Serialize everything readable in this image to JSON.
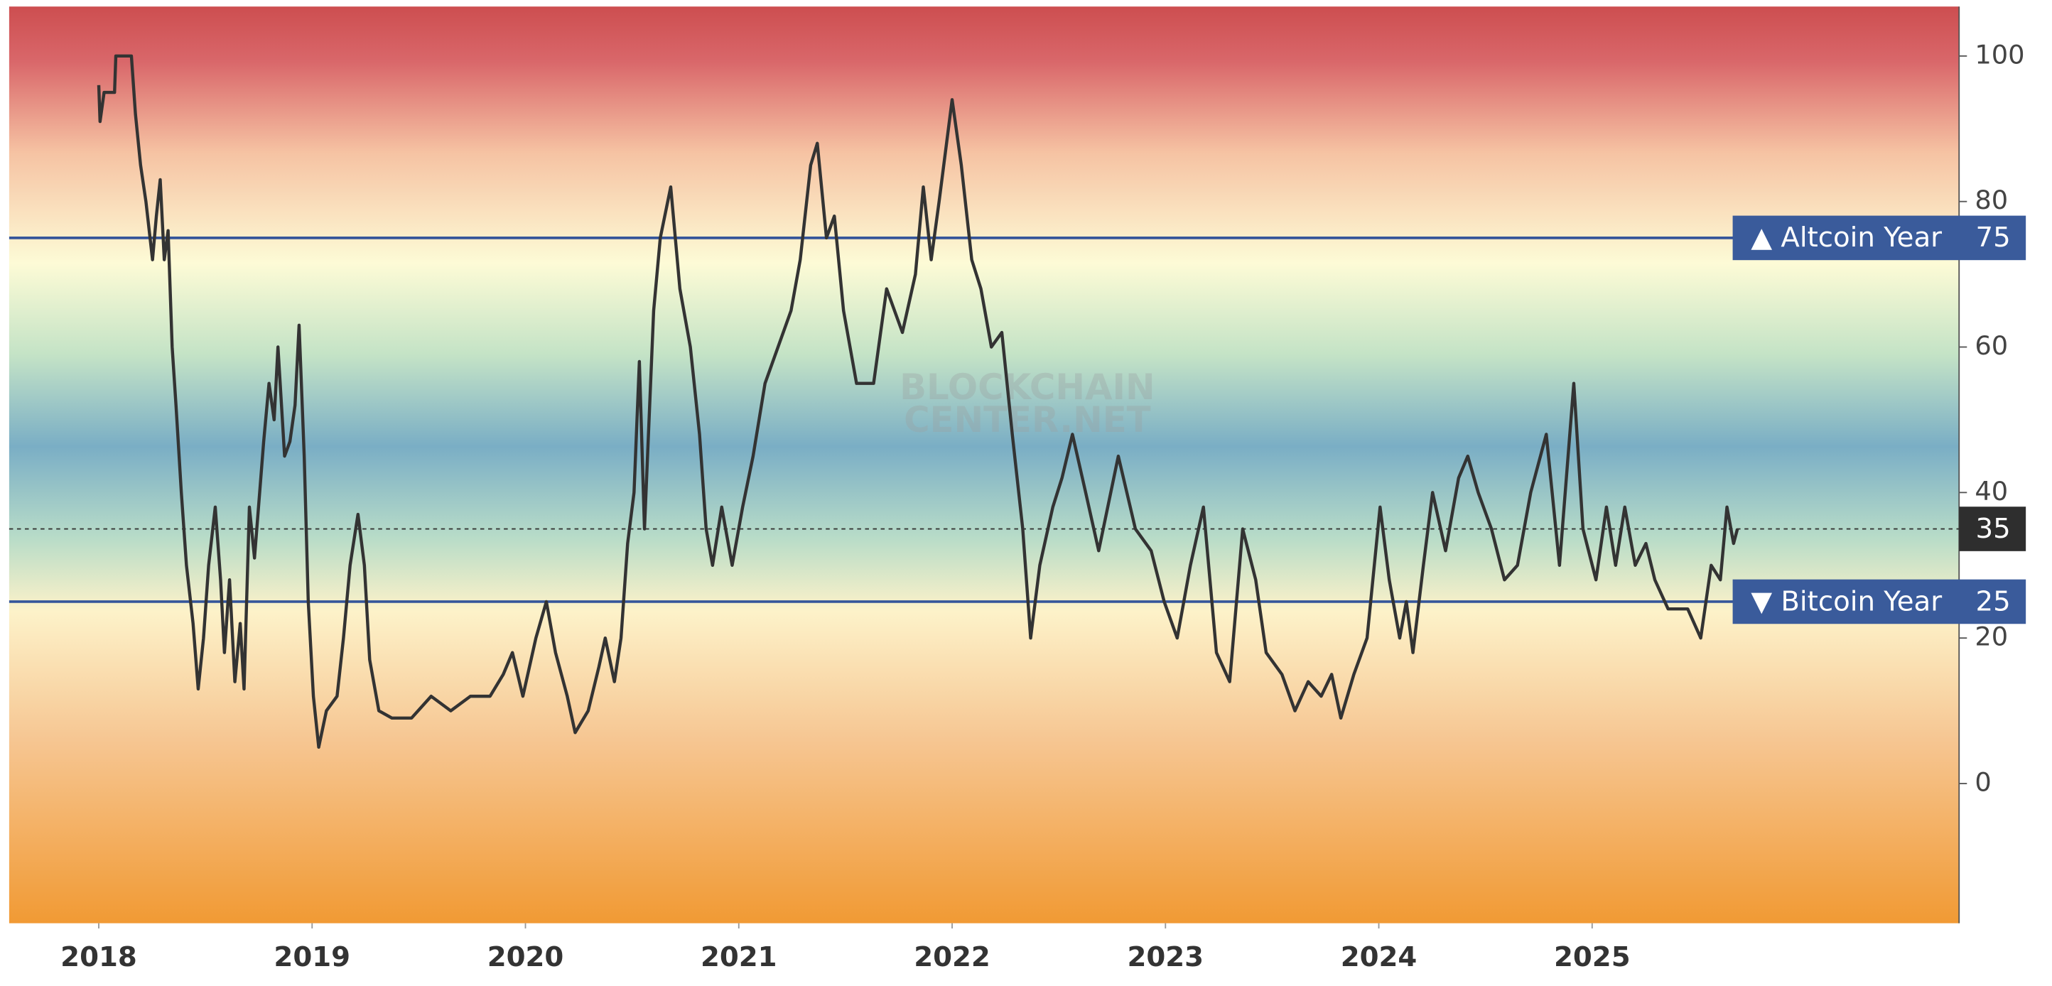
{
  "chart_data": {
    "type": "line",
    "color": "#333333",
    "xlim": [
      2017.58,
      2026.72
    ],
    "ylim": [
      -19.2,
      106.8
    ],
    "xticks": [
      2018,
      2019,
      2020,
      2021,
      2022,
      2023,
      2024,
      2025
    ],
    "yticks": [
      0,
      20,
      40,
      60,
      80,
      100
    ],
    "grid": false,
    "watermark": [
      "BLOCKCHAIN",
      "CENTER.NET"
    ],
    "reference_lines": [
      {
        "value": 75,
        "label": "▲ Altcoin Year"
      },
      {
        "value": 25,
        "label": "▼ Bitcoin Year"
      }
    ],
    "current_value": 35,
    "x": [
      2018.0,
      2018.006,
      2018.025,
      2018.074,
      2018.08,
      2018.153,
      2018.172,
      2018.196,
      2018.221,
      2018.252,
      2018.27,
      2018.288,
      2018.307,
      2018.325,
      2018.344,
      2018.362,
      2018.387,
      2018.411,
      2018.442,
      2018.466,
      2018.491,
      2018.515,
      2018.546,
      2018.571,
      2018.589,
      2018.613,
      2018.638,
      2018.663,
      2018.681,
      2018.706,
      2018.73,
      2018.773,
      2018.798,
      2018.822,
      2018.84,
      2018.871,
      2018.896,
      2018.92,
      2018.939,
      2018.963,
      2018.982,
      2019.006,
      2019.031,
      2019.067,
      2019.117,
      2019.147,
      2019.178,
      2019.215,
      2019.245,
      2019.27,
      2019.313,
      2019.374,
      2019.466,
      2019.558,
      2019.65,
      2019.742,
      2019.834,
      2019.896,
      2019.939,
      2019.988,
      2020.049,
      2020.098,
      2020.141,
      2020.196,
      2020.233,
      2020.294,
      2020.344,
      2020.374,
      2020.417,
      2020.448,
      2020.479,
      2020.509,
      2020.534,
      2020.558,
      2020.601,
      2020.632,
      2020.681,
      2020.724,
      2020.773,
      2020.816,
      2020.847,
      2020.877,
      2020.92,
      2020.969,
      2021.018,
      2021.067,
      2021.123,
      2021.184,
      2021.245,
      2021.288,
      2021.337,
      2021.368,
      2021.411,
      2021.448,
      2021.491,
      2021.552,
      2021.632,
      2021.693,
      2021.767,
      2021.828,
      2021.865,
      2021.902,
      2021.939,
      2022.0,
      2022.043,
      2022.092,
      2022.135,
      2022.184,
      2022.233,
      2022.282,
      2022.331,
      2022.368,
      2022.411,
      2022.472,
      2022.515,
      2022.564,
      2022.626,
      2022.687,
      2022.779,
      2022.859,
      2022.933,
      2022.994,
      2023.055,
      2023.117,
      2023.178,
      2023.239,
      2023.301,
      2023.362,
      2023.423,
      2023.472,
      2023.546,
      2023.607,
      2023.669,
      2023.73,
      2023.779,
      2023.822,
      2023.883,
      2023.945,
      2024.006,
      2024.049,
      2024.098,
      2024.129,
      2024.16,
      2024.209,
      2024.252,
      2024.313,
      2024.374,
      2024.417,
      2024.466,
      2024.528,
      2024.589,
      2024.65,
      2024.712,
      2024.785,
      2024.847,
      2024.914,
      2024.957,
      2025.018,
      2025.067,
      2025.11,
      2025.153,
      2025.202,
      2025.252,
      2025.294,
      2025.356,
      2025.448,
      2025.509,
      2025.558,
      2025.601,
      2025.632,
      2025.663,
      2025.681
    ],
    "values": [
      96,
      91,
      95,
      95,
      100,
      100,
      92,
      85,
      80,
      72,
      78,
      83,
      72,
      76,
      60,
      52,
      40,
      30,
      22,
      13,
      20,
      30,
      38,
      28,
      18,
      28,
      14,
      22,
      13,
      38,
      31,
      47,
      55,
      50,
      60,
      45,
      47,
      52,
      63,
      45,
      25,
      12,
      5,
      10,
      12,
      20,
      30,
      37,
      30,
      17,
      10,
      9,
      9,
      12,
      10,
      12,
      12,
      15,
      18,
      12,
      20,
      25,
      18,
      12,
      7,
      10,
      16,
      20,
      14,
      20,
      33,
      40,
      58,
      35,
      65,
      75,
      82,
      68,
      60,
      48,
      35,
      30,
      38,
      30,
      38,
      45,
      55,
      60,
      65,
      72,
      85,
      88,
      75,
      78,
      65,
      55,
      55,
      68,
      62,
      70,
      82,
      72,
      80,
      94,
      85,
      72,
      68,
      60,
      62,
      48,
      35,
      20,
      30,
      38,
      42,
      48,
      40,
      32,
      45,
      35,
      32,
      25,
      20,
      30,
      38,
      18,
      14,
      35,
      28,
      18,
      15,
      10,
      14,
      12,
      15,
      9,
      15,
      20,
      38,
      28,
      20,
      25,
      18,
      30,
      40,
      32,
      42,
      45,
      40,
      35,
      28,
      30,
      40,
      48,
      30,
      55,
      35,
      28,
      38,
      30,
      38,
      30,
      33,
      28,
      24,
      24,
      20,
      30,
      28,
      38,
      33,
      35
    ]
  }
}
